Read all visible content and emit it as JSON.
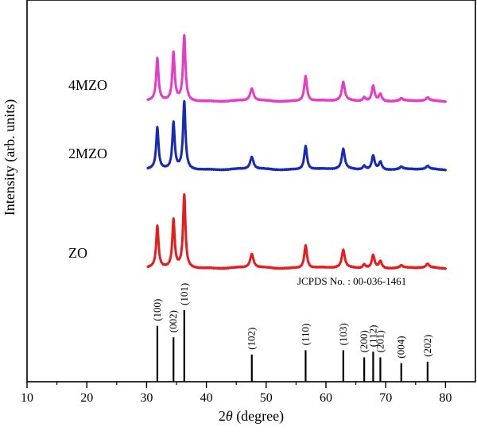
{
  "chart_data": {
    "type": "line",
    "title": "",
    "xlabel_prefix": "2",
    "xlabel_symbol": "θ",
    "xlabel_suffix": " (degree)",
    "ylabel": "Intensity (arb. units)",
    "xlim": [
      10,
      85
    ],
    "xticks": [
      10,
      20,
      30,
      40,
      50,
      60,
      70,
      80
    ],
    "reference_title": "JCPDS No. : 00-036-1461",
    "peak_positions": [
      31.8,
      34.5,
      36.3,
      47.6,
      56.6,
      62.9,
      66.4,
      67.9,
      69.1,
      72.6,
      77.0
    ],
    "series": [
      {
        "name": "4MZO",
        "color": "#e63ac7",
        "peak_heights": [
          0.55,
          0.62,
          0.85,
          0.16,
          0.33,
          0.24,
          0.05,
          0.2,
          0.09,
          0.03,
          0.04
        ]
      },
      {
        "name": "2MZO",
        "color": "#1a2ab8",
        "peak_heights": [
          0.54,
          0.6,
          0.88,
          0.16,
          0.31,
          0.26,
          0.05,
          0.18,
          0.1,
          0.03,
          0.04
        ]
      },
      {
        "name": "ZO",
        "color": "#e81c1c",
        "peak_heights": [
          0.54,
          0.62,
          0.95,
          0.18,
          0.3,
          0.23,
          0.05,
          0.17,
          0.09,
          0.03,
          0.05
        ]
      }
    ],
    "reference_peaks": [
      {
        "position": 31.8,
        "label": "(100)",
        "height": 0.78
      },
      {
        "position": 34.5,
        "label": "(002)",
        "height": 0.62
      },
      {
        "position": 36.3,
        "label": "(101)",
        "height": 1.0
      },
      {
        "position": 47.6,
        "label": "(102)",
        "height": 0.38
      },
      {
        "position": 56.6,
        "label": "(110)",
        "height": 0.44
      },
      {
        "position": 62.9,
        "label": "(103)",
        "height": 0.44
      },
      {
        "position": 66.4,
        "label": "(200)",
        "height": 0.34
      },
      {
        "position": 67.9,
        "label": "(112)",
        "height": 0.42
      },
      {
        "position": 69.1,
        "label": "(201)",
        "height": 0.34
      },
      {
        "position": 72.6,
        "label": "(004)",
        "height": 0.26
      },
      {
        "position": 77.0,
        "label": "(202)",
        "height": 0.28
      }
    ]
  }
}
